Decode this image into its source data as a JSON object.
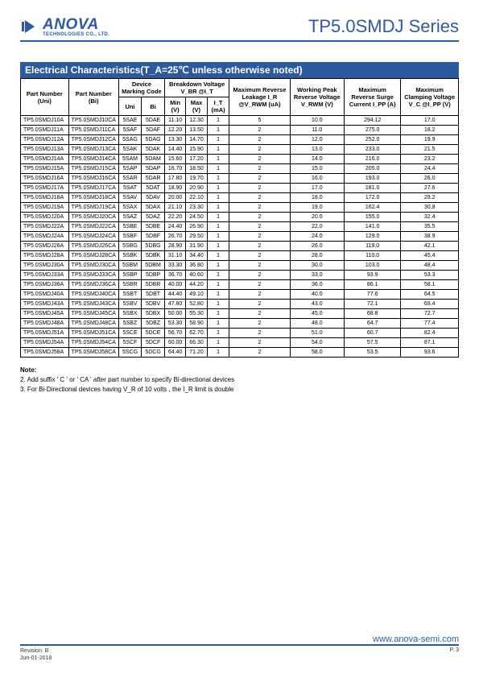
{
  "header": {
    "logo_main": "ANOVA",
    "logo_sub": "TECHNOLOGIES CO., LTD.",
    "series": "TP5.0SMDJ Series"
  },
  "section_title": "Electrical Characteristics(T_A=25℃ unless otherwise noted)",
  "table": {
    "header1": {
      "uni": "Part Number (Uni)",
      "bi": "Part Number (Bi)",
      "code": "Device Marking Code",
      "vbr": "Breakdown Voltage V_BR @I_T",
      "ir": "Maximum Reverse Leakage I_R @V_RWM (uA)",
      "vrwm": "Working Peak Reverse Voltage V_RWM (V)",
      "ipp": "Maximum Reverse Surge Current I_PP (A)",
      "vc": "Maximum Clamping Voltage V_C @I_PP (V)"
    },
    "header2": {
      "uni": "Uni",
      "bi": "Bi",
      "min": "Min (V)",
      "max": "Max (V)",
      "it": "I_T (mA)"
    },
    "rows": [
      [
        "TP5.0SMDJ10A",
        "TP5.0SMDJ10CA",
        "5SAE",
        "5DAE",
        "11.10",
        "12.30",
        "1",
        "5",
        "10.0",
        "294.12",
        "17.0"
      ],
      [
        "TP5.0SMDJ11A",
        "TP5.0SMDJ11CA",
        "5SAF",
        "5DAF",
        "12.20",
        "13.50",
        "1",
        "2",
        "11.0",
        "275.0",
        "18.2"
      ],
      [
        "TP5.0SMDJ12A",
        "TP5.0SMDJ12CA",
        "5SAG",
        "5DAG",
        "13.30",
        "14.70",
        "1",
        "2",
        "12.0",
        "252.0",
        "19.9"
      ],
      [
        "TP5.0SMDJ13A",
        "TP5.0SMDJ13CA",
        "5SAK",
        "5DAK",
        "14.40",
        "15.90",
        "1",
        "2",
        "13.0",
        "233.0",
        "21.5"
      ],
      [
        "TP5.0SMDJ14A",
        "TP5.0SMDJ14CA",
        "5SAM",
        "5DAM",
        "15.60",
        "17.20",
        "1",
        "2",
        "14.0",
        "216.0",
        "23.2"
      ],
      [
        "TP5.0SMDJ15A",
        "TP5.0SMDJ15CA",
        "5SAP",
        "5DAP",
        "16.70",
        "18.50",
        "1",
        "2",
        "15.0",
        "205.0",
        "24.4"
      ],
      [
        "TP5.0SMDJ16A",
        "TP5.0SMDJ16CA",
        "5SAR",
        "5DAR",
        "17.80",
        "19.70",
        "1",
        "2",
        "16.0",
        "193.0",
        "26.0"
      ],
      [
        "TP5.0SMDJ17A",
        "TP5.0SMDJ17CA",
        "5SAT",
        "5DAT",
        "18.90",
        "20.90",
        "1",
        "2",
        "17.0",
        "181.0",
        "27.6"
      ],
      [
        "TP5.0SMDJ18A",
        "TP5.0SMDJ18CA",
        "5SAV",
        "5DAV",
        "20.00",
        "22.10",
        "1",
        "2",
        "18.0",
        "172.0",
        "29.2"
      ],
      [
        "TP5.0SMDJ19A",
        "TP5.0SMDJ19CA",
        "5SAX",
        "5DAX",
        "21.10",
        "23.30",
        "1",
        "2",
        "19.0",
        "162.4",
        "30.8"
      ],
      [
        "TP5.0SMDJ20A",
        "TP5.0SMDJ20CA",
        "5SAZ",
        "5DAZ",
        "22.20",
        "24.50",
        "1",
        "2",
        "20.0",
        "155.0",
        "32.4"
      ],
      [
        "TP5.0SMDJ22A",
        "TP5.0SMDJ22CA",
        "5SBE",
        "5DBE",
        "24.40",
        "26.90",
        "1",
        "2",
        "22.0",
        "141.0",
        "35.5"
      ],
      [
        "TP5.0SMDJ24A",
        "TP5.0SMDJ24CA",
        "5SBF",
        "5DBF",
        "26.70",
        "29.50",
        "1",
        "2",
        "24.0",
        "129.0",
        "38.9"
      ],
      [
        "TP5.0SMDJ26A",
        "TP5.0SMDJ26CA",
        "5SBG",
        "5DBG",
        "28.90",
        "31.90",
        "1",
        "2",
        "26.0",
        "119.0",
        "42.1"
      ],
      [
        "TP5.0SMDJ28A",
        "TP5.0SMDJ28CA",
        "5SBK",
        "5DBK",
        "31.10",
        "34.40",
        "1",
        "2",
        "28.0",
        "110.0",
        "45.4"
      ],
      [
        "TP5.0SMDJ30A",
        "TP5.0SMDJ30CA",
        "5SBM",
        "5DBM",
        "33.30",
        "36.80",
        "1",
        "2",
        "30.0",
        "103.0",
        "48.4"
      ],
      [
        "TP5.0SMDJ33A",
        "TP5.0SMDJ33CA",
        "5SBP",
        "5DBP",
        "36.70",
        "40.60",
        "1",
        "2",
        "33.0",
        "93.9",
        "53.3"
      ],
      [
        "TP5.0SMDJ36A",
        "TP5.0SMDJ36CA",
        "5SBR",
        "5DBR",
        "40.00",
        "44.20",
        "1",
        "2",
        "36.0",
        "86.1",
        "58.1"
      ],
      [
        "TP5.0SMDJ40A",
        "TP5.0SMDJ40CA",
        "5SBT",
        "5DBT",
        "44.40",
        "49.10",
        "1",
        "2",
        "40.0",
        "77.6",
        "64.5"
      ],
      [
        "TP5.0SMDJ43A",
        "TP5.0SMDJ43CA",
        "5SBV",
        "5DBV",
        "47.80",
        "52.80",
        "1",
        "2",
        "43.0",
        "72.1",
        "69.4"
      ],
      [
        "TP5.0SMDJ45A",
        "TP5.0SMDJ45CA",
        "5SBX",
        "5DBX",
        "50.00",
        "55.30",
        "1",
        "2",
        "45.0",
        "68.8",
        "72.7"
      ],
      [
        "TP5.0SMDJ48A",
        "TP5.0SMDJ48CA",
        "5SBZ",
        "5DBZ",
        "53.30",
        "58.90",
        "1",
        "2",
        "48.0",
        "64.7",
        "77.4"
      ],
      [
        "TP5.0SMDJ51A",
        "TP5.0SMDJ51CA",
        "5SCE",
        "5DCE",
        "56.70",
        "62.70",
        "1",
        "2",
        "51.0",
        "60.7",
        "82.4"
      ],
      [
        "TP5.0SMDJ54A",
        "TP5.0SMDJ54CA",
        "5SCF",
        "5DCF",
        "60.00",
        "66.30",
        "1",
        "2",
        "54.0",
        "57.5",
        "87.1"
      ],
      [
        "TP5.0SMDJ58A",
        "TP5.0SMDJ58CA",
        "5SCG",
        "5DCG",
        "64.40",
        "71.20",
        "1",
        "2",
        "58.0",
        "53.5",
        "93.6"
      ]
    ]
  },
  "notes": {
    "title": "Note:",
    "n2": "2. Add suffix ' C ' or  ' CA ' after part number to specify Bi-directional devices",
    "n3": "3. For Bi-Directional devices having V_R of 10 volts , the I_R limit is double"
  },
  "footer": {
    "rev": "Revision: B",
    "date": "Jun-01-2018",
    "url": "www.anova-semi.com",
    "page": "P. 3"
  },
  "colors": {
    "primary": "#2c5aa0"
  }
}
